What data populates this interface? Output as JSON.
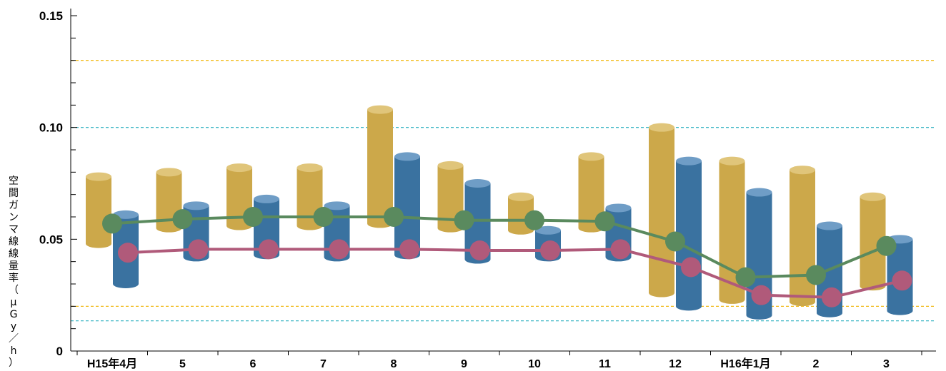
{
  "chart_data": {
    "type": "line",
    "ylabel": "空間ガンマ線線量率（μGy／h）",
    "ylim": [
      0,
      0.15
    ],
    "yticks": [
      {
        "value": 0,
        "label": "0"
      },
      {
        "value": 0.05,
        "label": "0.05"
      },
      {
        "value": 0.1,
        "label": "0.10"
      },
      {
        "value": 0.15,
        "label": "0.15"
      }
    ],
    "categories": [
      "H15年4月",
      "5",
      "6",
      "7",
      "8",
      "9",
      "10",
      "11",
      "12",
      "H16年1月",
      "2",
      "3"
    ],
    "reference_lines": [
      {
        "value": 0.13,
        "color": "#f0b400"
      },
      {
        "value": 0.1,
        "color": "#2ab0c0"
      },
      {
        "value": 0.02,
        "color": "#f0b400"
      },
      {
        "value": 0.0135,
        "color": "#2ab0c0"
      }
    ],
    "range_bars": [
      {
        "color": "#cca84a",
        "top_color": "#e0c57a",
        "low": [
          0.048,
          0.055,
          0.056,
          0.056,
          0.057,
          0.055,
          0.054,
          0.055,
          0.026,
          0.023,
          0.022,
          0.029
        ],
        "high": [
          0.078,
          0.08,
          0.082,
          0.082,
          0.108,
          0.083,
          0.069,
          0.087,
          0.1,
          0.085,
          0.081,
          0.069
        ]
      },
      {
        "color": "#3a72a0",
        "top_color": "#6f9dc6",
        "low": [
          0.03,
          0.042,
          0.043,
          0.042,
          0.043,
          0.041,
          0.042,
          0.042,
          0.02,
          0.016,
          0.017,
          0.018
        ],
        "high": [
          0.061,
          0.065,
          0.068,
          0.065,
          0.087,
          0.075,
          0.054,
          0.064,
          0.085,
          0.071,
          0.056,
          0.05
        ]
      }
    ],
    "series": [
      {
        "color": "#5a8a5e",
        "values": [
          0.057,
          0.059,
          0.06,
          0.06,
          0.06,
          0.0585,
          0.0585,
          0.058,
          0.049,
          0.033,
          0.034,
          0.047
        ]
      },
      {
        "color": "#b05a7a",
        "values": [
          0.044,
          0.0455,
          0.0455,
          0.0455,
          0.0455,
          0.045,
          0.045,
          0.0455,
          0.0375,
          0.025,
          0.024,
          0.0315
        ]
      }
    ],
    "grid": false
  }
}
